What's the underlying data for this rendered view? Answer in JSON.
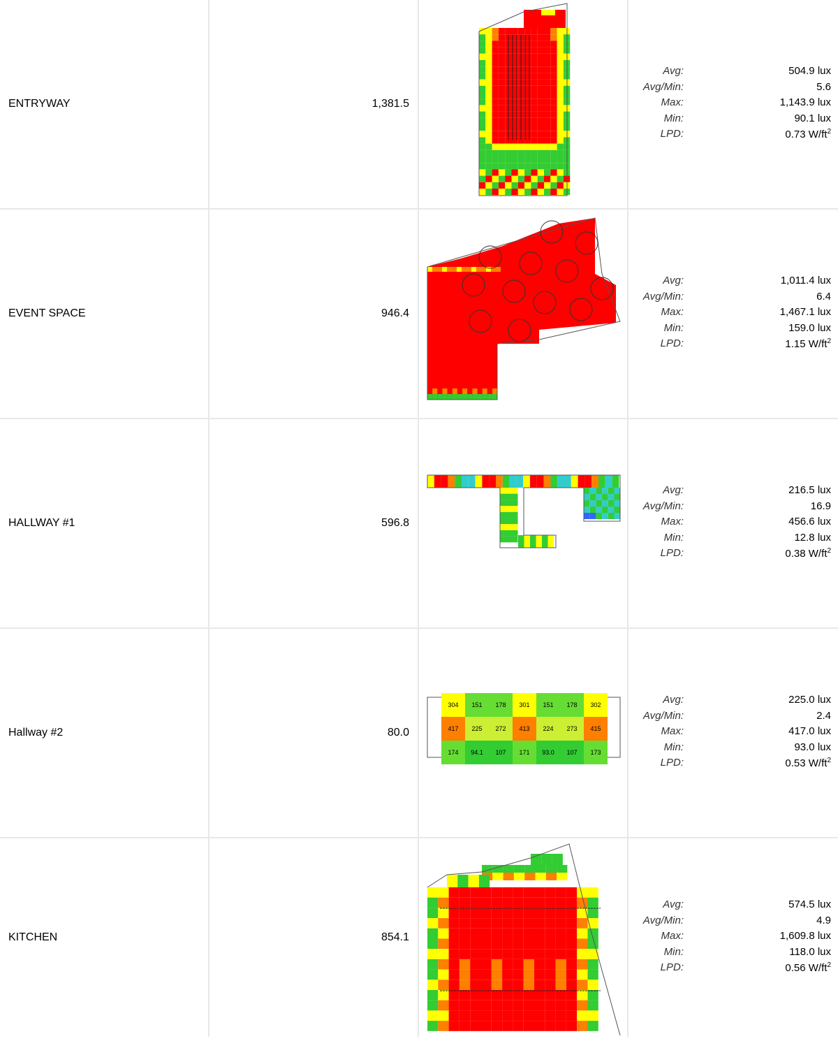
{
  "stat_labels": {
    "avg": "Avg:",
    "avg_min": "Avg/Min:",
    "max": "Max:",
    "min": "Min:",
    "lpd": "LPD:"
  },
  "colors": {
    "red": "#ff0000",
    "orange": "#ff7f00",
    "yellow": "#ffff00",
    "green": "#33cc33",
    "cyan": "#33cccc",
    "blue": "#3366ff",
    "outline": "#555555",
    "divider": "#e8e8e8"
  },
  "rooms": [
    {
      "name": "ENTRYWAY",
      "area": "1,381.5",
      "avg": "504.9 lux",
      "avg_min": "5.6",
      "max": "1,143.9 lux",
      "min": "90.1 lux",
      "lpd": "0.73 W/ft",
      "lpd_exp": "2"
    },
    {
      "name": "EVENT SPACE",
      "area": "946.4",
      "avg": "1,011.4 lux",
      "avg_min": "6.4",
      "max": "1,467.1 lux",
      "min": "159.0 lux",
      "lpd": "1.15 W/ft",
      "lpd_exp": "2"
    },
    {
      "name": "HALLWAY #1",
      "area": "596.8",
      "avg": "216.5 lux",
      "avg_min": "16.9",
      "max": "456.6 lux",
      "min": "12.8 lux",
      "lpd": "0.38 W/ft",
      "lpd_exp": "2"
    },
    {
      "name": "Hallway #2",
      "area": "80.0",
      "avg": "225.0 lux",
      "avg_min": "2.4",
      "max": "417.0 lux",
      "min": "93.0 lux",
      "lpd": "0.53 W/ft",
      "lpd_exp": "2",
      "grid": [
        [
          "304",
          "151",
          "178",
          "301",
          "151",
          "178",
          "302"
        ],
        [
          "417",
          "225",
          "272",
          "413",
          "224",
          "273",
          "415"
        ],
        [
          "174",
          "94.1",
          "107",
          "171",
          "93.0",
          "107",
          "173"
        ]
      ]
    },
    {
      "name": "KITCHEN",
      "area": "854.1",
      "avg": "574.5 lux",
      "avg_min": "4.9",
      "max": "1,609.8 lux",
      "min": "118.0 lux",
      "lpd": "0.56 W/ft",
      "lpd_exp": "2"
    }
  ]
}
